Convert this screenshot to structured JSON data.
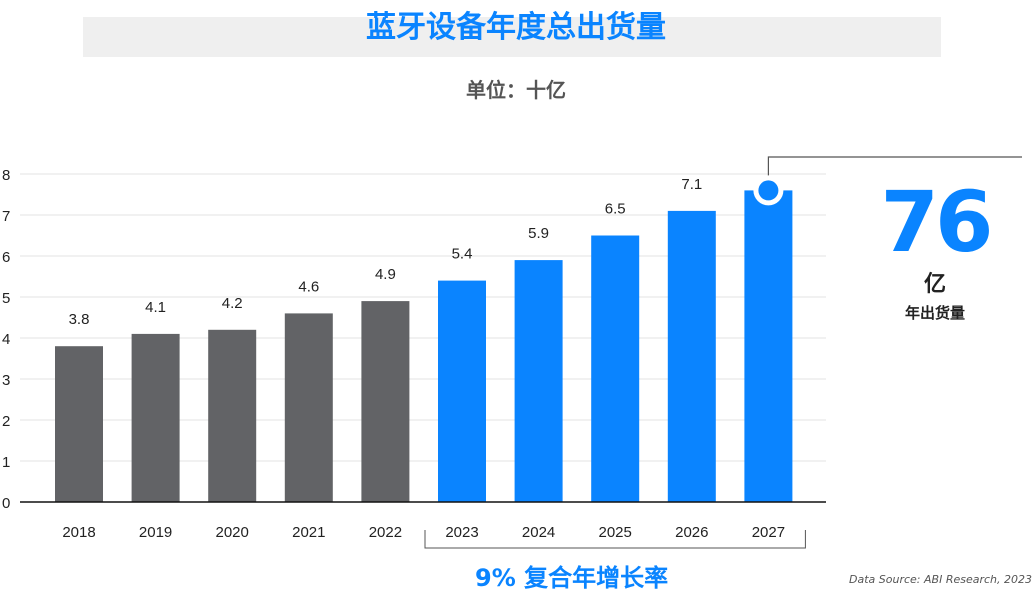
{
  "title": "蓝牙设备年度总出货量",
  "unit": "单位：十亿",
  "highlight": {
    "value": "76",
    "unit": "亿",
    "caption": "年出货量"
  },
  "cagr": "9% 复合年增长率",
  "source": "Data Source: ABI Research, 2023",
  "colors": {
    "historical": "#626366",
    "forecast": "#0a84ff",
    "accent": "#0a84ff"
  },
  "chart_data": {
    "type": "bar",
    "categories": [
      "2018",
      "2019",
      "2020",
      "2021",
      "2022",
      "2023",
      "2024",
      "2025",
      "2026",
      "2027"
    ],
    "values": [
      3.8,
      4.1,
      4.2,
      4.6,
      4.9,
      5.4,
      5.9,
      6.5,
      7.1,
      7.6
    ],
    "labels": [
      "3.8",
      "4.1",
      "4.2",
      "4.6",
      "4.9",
      "5.4",
      "5.9",
      "6.5",
      "7.1",
      ""
    ],
    "forecast_from": "2023",
    "ylim": [
      0,
      8
    ],
    "yticks": [
      "0",
      "1",
      "2",
      "3",
      "4",
      "5",
      "6",
      "7",
      "8"
    ],
    "grid": true
  }
}
